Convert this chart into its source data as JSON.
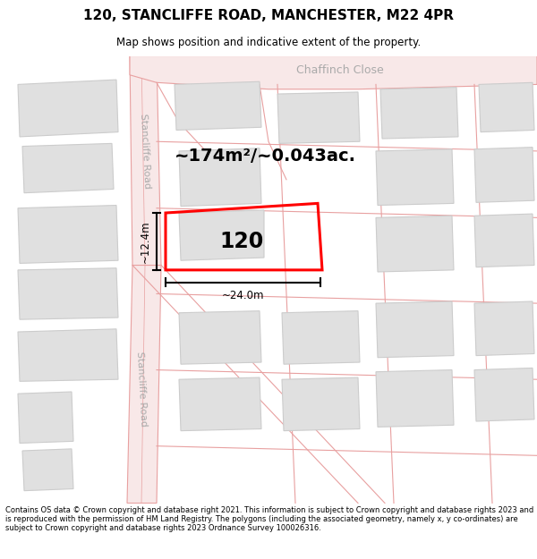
{
  "title": "120, STANCLIFFE ROAD, MANCHESTER, M22 4PR",
  "subtitle": "Map shows position and indicative extent of the property.",
  "footer": "Contains OS data © Crown copyright and database right 2021. This information is subject to Crown copyright and database rights 2023 and is reproduced with the permission of HM Land Registry. The polygons (including the associated geometry, namely x, y co-ordinates) are subject to Crown copyright and database rights 2023 Ordnance Survey 100026316.",
  "map_bg": "#ffffff",
  "road_fill": "#f8e8e8",
  "road_line": "#e8a0a0",
  "building_fill": "#e0e0e0",
  "building_edge": "#cccccc",
  "highlight_color": "#ff0000",
  "area_text": "~174m²/~0.043ac.",
  "plot_label": "120",
  "dim_width": "~24.0m",
  "dim_height": "~12.4m",
  "road_label_upper": "Stancliffe Road",
  "road_label_lower": "Stancliffe Road",
  "street_label": "Chaffinch Close"
}
